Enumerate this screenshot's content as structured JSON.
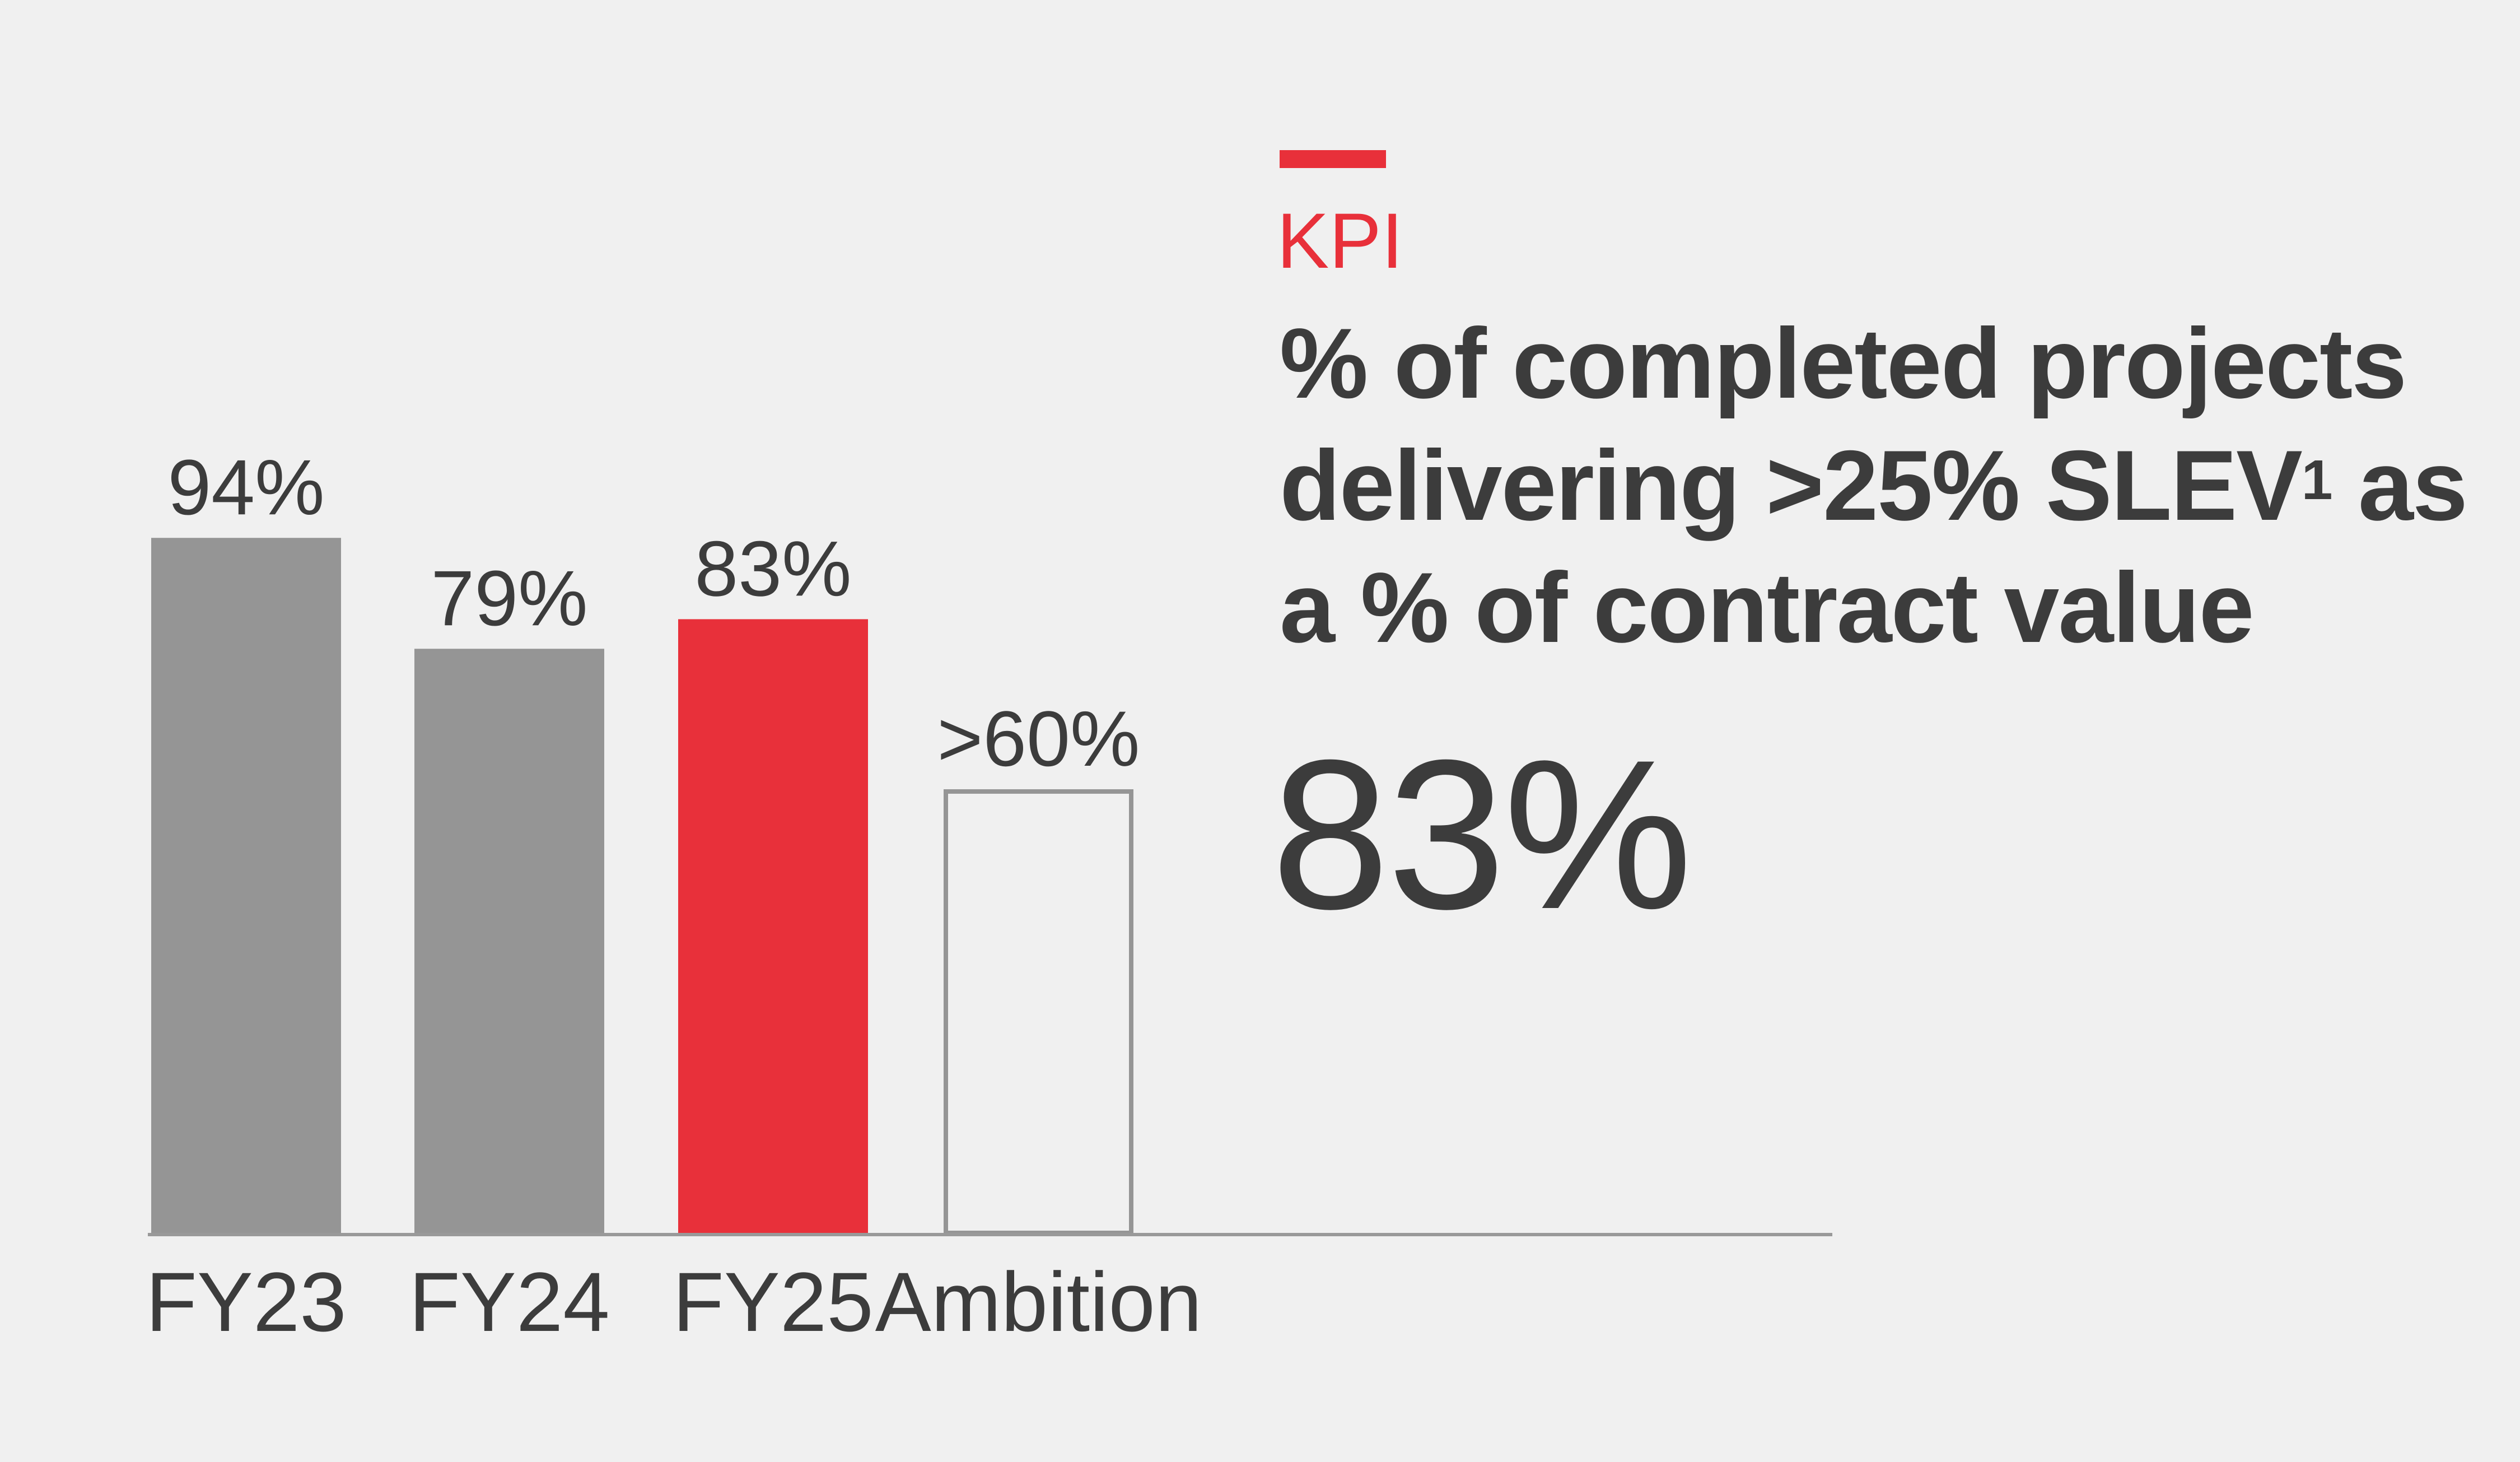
{
  "kpi": {
    "label": "KPI",
    "title": "% of completed projects delivering >25% SLEV",
    "title_sup": "1",
    "title_end": " as a % of contract value",
    "headline_value": "83%"
  },
  "colors": {
    "accent": "#e8303a",
    "bar": "#959595",
    "text": "#3c3c3c",
    "background": "#f0f0f0"
  },
  "chart_data": {
    "type": "bar",
    "categories": [
      "FY23",
      "FY24",
      "FY25",
      "Ambition"
    ],
    "values": [
      94,
      79,
      83,
      60
    ],
    "data_labels": [
      "94%",
      "79%",
      "83%",
      ">60%"
    ],
    "styles": [
      "gray",
      "gray",
      "red-highlight",
      "outline"
    ],
    "ylim": [
      0,
      100
    ],
    "grid": false,
    "xlabel": "",
    "ylabel": ""
  }
}
